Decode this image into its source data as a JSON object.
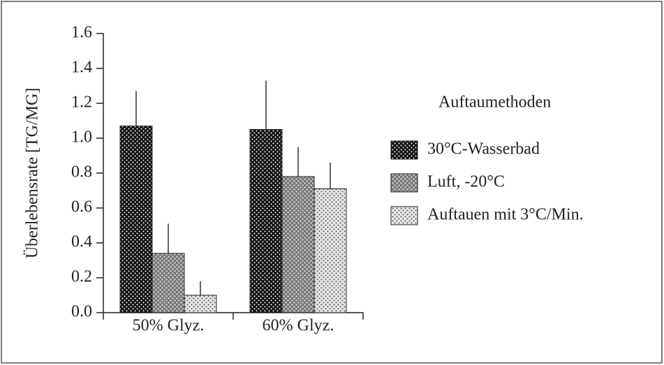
{
  "chart_data": {
    "type": "bar",
    "ylabel": "Überlebensrate [TG/MG]",
    "legend_title": "Auftaumethoden",
    "categories": [
      "50% Glyz.",
      "60% Glyz."
    ],
    "series": [
      {
        "name": "30°C-Wasserbad",
        "color": "#111111",
        "values": [
          1.07,
          1.05
        ],
        "errors": [
          0.2,
          0.28
        ]
      },
      {
        "name": "Luft, -20°C",
        "color": "#777777",
        "values": [
          0.34,
          0.78
        ],
        "errors": [
          0.17,
          0.17
        ]
      },
      {
        "name": "Auftauen mit 3°C/Min.",
        "color": "#e6e6e6",
        "values": [
          0.1,
          0.71
        ],
        "errors": [
          0.08,
          0.15
        ]
      }
    ],
    "ylim": [
      0,
      1.6
    ],
    "yticks": [
      {
        "value": 0,
        "label": "0.0"
      },
      {
        "value": 0.2,
        "label": "0.2"
      },
      {
        "value": 0.4,
        "label": "0.4"
      },
      {
        "value": 0.6,
        "label": "0.6"
      },
      {
        "value": 0.8,
        "label": "0.8"
      },
      {
        "value": 1.0,
        "label": "1.0"
      },
      {
        "value": 1.2,
        "label": "1.2"
      },
      {
        "value": 1.4,
        "label": "1.4"
      },
      {
        "value": 1.6,
        "label": "1.6"
      }
    ],
    "legend_position": "right"
  }
}
